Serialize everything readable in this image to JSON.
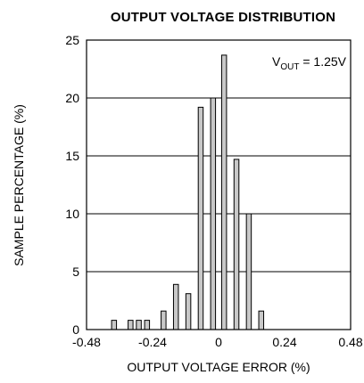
{
  "chart_data": {
    "type": "bar",
    "title": "OUTPUT VOLTAGE DISTRIBUTION",
    "xlabel": "OUTPUT VOLTAGE ERROR (%)",
    "ylabel": "SAMPLE PERCENTAGE (%)",
    "annotation": {
      "main": "V",
      "sub": "OUT",
      "rest": " = 1.25V"
    },
    "xlim": [
      -0.48,
      0.48
    ],
    "ylim": [
      0,
      25
    ],
    "xticks": [
      -0.48,
      -0.24,
      0,
      0.24,
      0.48
    ],
    "xtick_labels": [
      "-0.48",
      "-0.24",
      "0",
      "0.24",
      "0.48"
    ],
    "yticks": [
      0,
      5,
      10,
      15,
      20,
      25
    ],
    "ytick_labels": [
      "0",
      "5",
      "10",
      "15",
      "20",
      "25"
    ],
    "grid": "horizontal",
    "bar_color": "#c8c8c8",
    "x": [
      -0.38,
      -0.32,
      -0.29,
      -0.26,
      -0.2,
      -0.155,
      -0.11,
      -0.065,
      -0.02,
      0.02,
      0.065,
      0.11,
      0.155
    ],
    "values": [
      0.8,
      0.8,
      0.8,
      0.8,
      1.6,
      3.9,
      3.1,
      19.2,
      20.0,
      23.7,
      14.7,
      10.0,
      1.6
    ]
  }
}
